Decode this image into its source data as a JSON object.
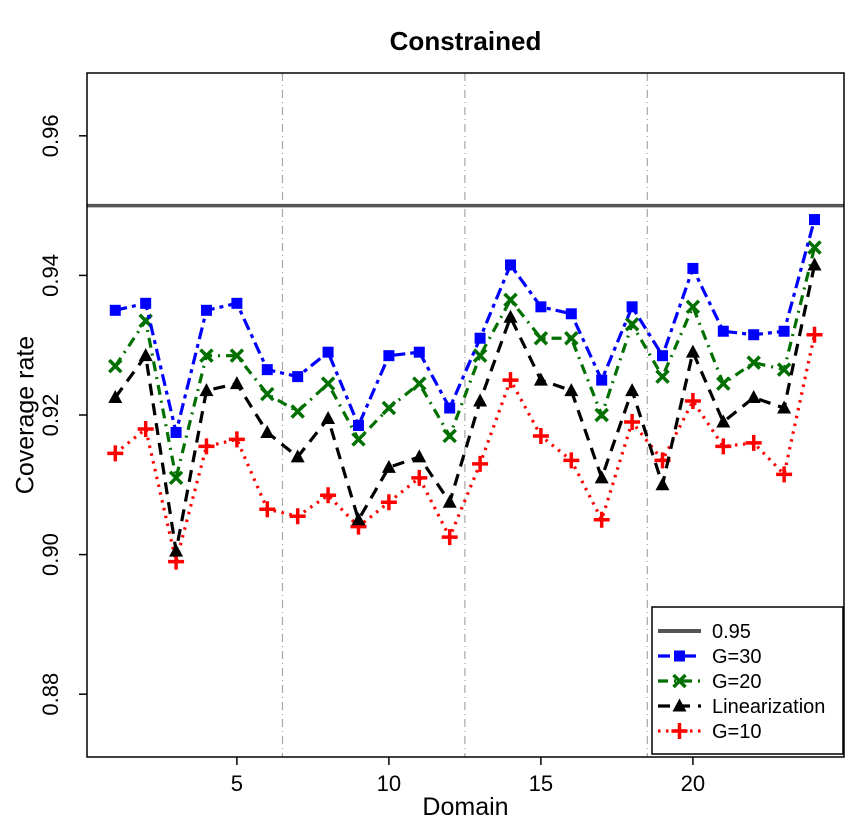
{
  "chart_data": {
    "type": "line",
    "title": "Constrained",
    "xlabel": "Domain",
    "ylabel": "Coverage rate",
    "xlim": [
      0.07,
      24.97
    ],
    "ylim": [
      0.871,
      0.969
    ],
    "x_ticks": [
      5,
      10,
      15,
      20
    ],
    "y_ticks": [
      0.88,
      0.9,
      0.92,
      0.94,
      0.96
    ],
    "y_tick_labels": [
      "0.88",
      "0.90",
      "0.92",
      "0.94",
      "0.96"
    ],
    "vertical_gridlines_x": [
      6.5,
      12.5,
      18.5
    ],
    "grid_color": "#A6A6A6",
    "reference_line": {
      "label": "0.95",
      "y": 0.95,
      "color": "#555555"
    },
    "x": [
      1,
      2,
      3,
      4,
      5,
      6,
      7,
      8,
      9,
      10,
      11,
      12,
      13,
      14,
      15,
      16,
      17,
      18,
      19,
      20,
      21,
      22,
      23,
      24
    ],
    "series": [
      {
        "name": "G=30",
        "color": "#0000FF",
        "marker": "square",
        "dash": "dashdot",
        "values": [
          0.935,
          0.936,
          0.9175,
          0.935,
          0.936,
          0.9265,
          0.9255,
          0.929,
          0.9185,
          0.9285,
          0.929,
          0.921,
          0.931,
          0.9415,
          0.9355,
          0.9345,
          0.925,
          0.9355,
          0.9285,
          0.941,
          0.932,
          0.9315,
          0.932,
          0.948
        ]
      },
      {
        "name": "G=20",
        "color": "#017001",
        "marker": "x",
        "dash": "dotdash",
        "values": [
          0.927,
          0.9335,
          0.911,
          0.9285,
          0.9285,
          0.923,
          0.9205,
          0.9245,
          0.9165,
          0.921,
          0.9245,
          0.917,
          0.9285,
          0.9365,
          0.931,
          0.931,
          0.92,
          0.933,
          0.9255,
          0.9355,
          0.9245,
          0.9275,
          0.9265,
          0.944
        ]
      },
      {
        "name": "Linearization",
        "color": "#000000",
        "marker": "triangle",
        "dash": "dash",
        "values": [
          0.9225,
          0.9285,
          0.9005,
          0.9235,
          0.9245,
          0.9175,
          0.914,
          0.9195,
          0.905,
          0.9125,
          0.914,
          0.9075,
          0.922,
          0.934,
          0.925,
          0.9235,
          0.911,
          0.9235,
          0.91,
          0.929,
          0.919,
          0.9225,
          0.921,
          0.9415
        ]
      },
      {
        "name": "G=10",
        "color": "#FF0000",
        "marker": "plus",
        "dash": "dot",
        "values": [
          0.9145,
          0.918,
          0.899,
          0.9155,
          0.9165,
          0.9065,
          0.9055,
          0.9085,
          0.904,
          0.9075,
          0.911,
          0.9025,
          0.913,
          0.925,
          0.917,
          0.9135,
          0.905,
          0.919,
          0.9135,
          0.922,
          0.9155,
          0.916,
          0.9115,
          0.9315
        ]
      }
    ],
    "draw_order": [
      3,
      1,
      0,
      2
    ],
    "legend": {
      "position": "bottom-right",
      "entries": [
        {
          "label": "0.95",
          "style": "ref"
        },
        {
          "label": "G=30",
          "style": "series",
          "series": 0
        },
        {
          "label": "G=20",
          "style": "series",
          "series": 1
        },
        {
          "label": "Linearization",
          "style": "series",
          "series": 2
        },
        {
          "label": "G=10",
          "style": "series",
          "series": 3
        }
      ]
    }
  }
}
